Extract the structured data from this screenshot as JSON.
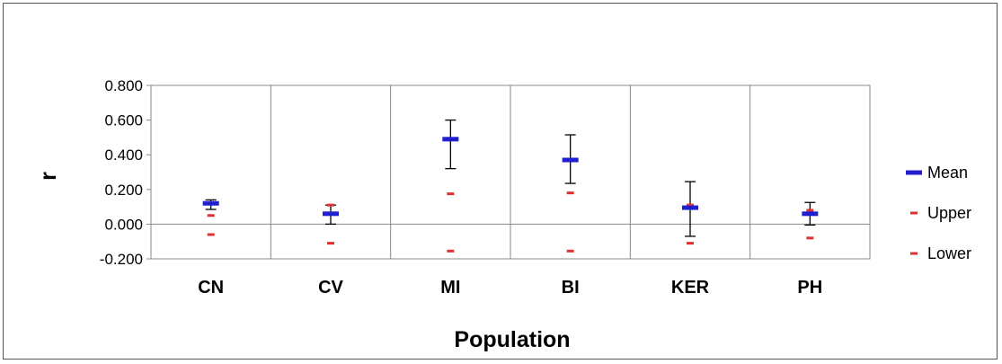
{
  "chart_data": {
    "type": "scatter",
    "xlabel": "Population",
    "ylabel": "r",
    "ylim": [
      -0.2,
      0.8
    ],
    "ytick_step": 0.2,
    "categories": [
      "CN",
      "CV",
      "MI",
      "BI",
      "KER",
      "PH"
    ],
    "ytick_labels": [
      "0.800",
      "0.600",
      "0.400",
      "0.200",
      "0.000",
      "-0.200"
    ],
    "series": [
      {
        "name": "Mean",
        "color": "#1f1fd0",
        "values": [
          0.12,
          0.06,
          0.49,
          0.37,
          0.095,
          0.06
        ]
      },
      {
        "name": "Upper",
        "color": "#e03030",
        "values": [
          0.05,
          0.11,
          0.175,
          0.18,
          0.11,
          0.08
        ]
      },
      {
        "name": "Lower",
        "color": "#e03030",
        "values": [
          -0.06,
          -0.11,
          -0.155,
          -0.155,
          -0.11,
          -0.08
        ]
      }
    ],
    "error_bars": {
      "color": "#000000",
      "high": [
        0.14,
        0.11,
        0.6,
        0.515,
        0.245,
        0.125
      ],
      "low": [
        0.085,
        0.0,
        0.32,
        0.235,
        -0.07,
        -0.005
      ]
    },
    "grid": "vertical category separators",
    "legend_position": "right"
  }
}
